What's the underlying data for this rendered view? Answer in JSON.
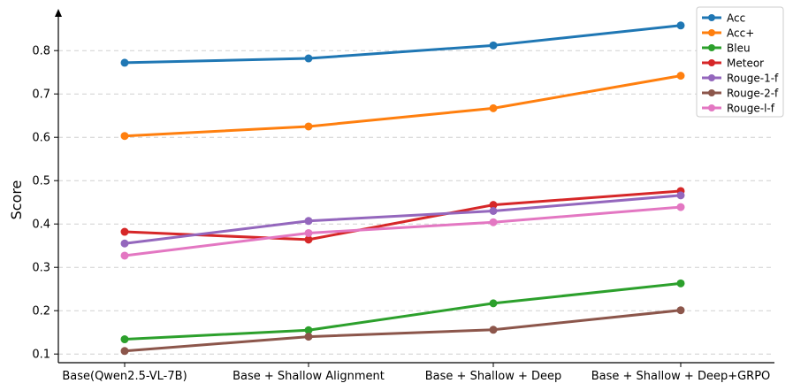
{
  "chart_data": {
    "type": "line",
    "categories": [
      "Base(Qwen2.5-VL-7B)",
      "Base + Shallow Alignment",
      "Base + Shallow + Deep",
      "Base + Shallow + Deep+GRPO"
    ],
    "series": [
      {
        "name": "Acc",
        "color": "#1f77b4",
        "values": [
          0.772,
          0.782,
          0.812,
          0.858
        ]
      },
      {
        "name": "Acc+",
        "color": "#ff7f0e",
        "values": [
          0.603,
          0.625,
          0.667,
          0.742
        ]
      },
      {
        "name": "Bleu",
        "color": "#2ca02c",
        "values": [
          0.134,
          0.155,
          0.217,
          0.263
        ]
      },
      {
        "name": "Meteor",
        "color": "#d62728",
        "values": [
          0.382,
          0.364,
          0.444,
          0.476
        ]
      },
      {
        "name": "Rouge-1-f",
        "color": "#9467bd",
        "values": [
          0.355,
          0.407,
          0.43,
          0.466
        ]
      },
      {
        "name": "Rouge-2-f",
        "color": "#8c564b",
        "values": [
          0.107,
          0.14,
          0.156,
          0.201
        ]
      },
      {
        "name": "Rouge-l-f",
        "color": "#e377c2",
        "values": [
          0.327,
          0.379,
          0.404,
          0.439
        ]
      }
    ],
    "yticks": [
      "0.1",
      "0.2",
      "0.3",
      "0.4",
      "0.5",
      "0.6",
      "0.7",
      "0.8"
    ],
    "ylabel": "Score",
    "xlabel": "",
    "title": "",
    "ylim": [
      0.08,
      0.88
    ],
    "grid": "horizontal dashed",
    "legend": "top-right"
  }
}
